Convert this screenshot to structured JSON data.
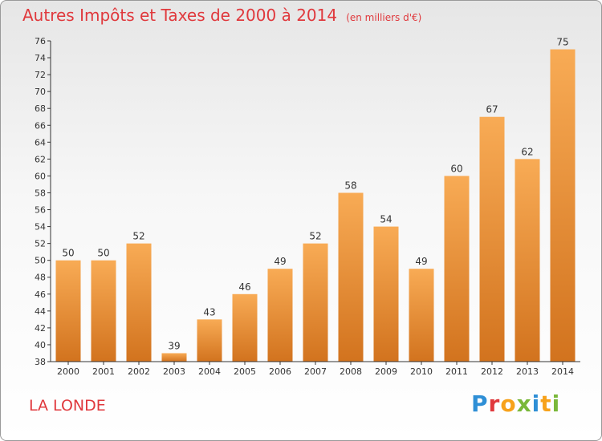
{
  "header": {
    "title": "Autres Impôts et Taxes de 2000 à 2014",
    "subtitle": "(en milliers d'€)"
  },
  "footer": {
    "commune": "LA LONDE",
    "logo": "Proxiti"
  },
  "colors": {
    "title": "#e0393d",
    "bar_light": "#f8ab55",
    "bar_dark": "#d2731e",
    "logo_letters": [
      "#2f8fd6",
      "#e0393d",
      "#f7a21b",
      "#7ab83a",
      "#2f8fd6",
      "#f7a21b",
      "#7ab83a"
    ]
  },
  "chart_data": {
    "type": "bar",
    "title": "Autres Impôts et Taxes de 2000 à 2014",
    "subtitle": "(en milliers d'€)",
    "xlabel": "",
    "ylabel": "",
    "categories": [
      "2000",
      "2001",
      "2002",
      "2003",
      "2004",
      "2005",
      "2006",
      "2007",
      "2008",
      "2009",
      "2010",
      "2011",
      "2012",
      "2013",
      "2014"
    ],
    "values": [
      50,
      50,
      52,
      39,
      43,
      46,
      49,
      52,
      58,
      54,
      49,
      60,
      67,
      62,
      75
    ],
    "ylim": [
      38,
      76
    ],
    "yticks": [
      38,
      40,
      42,
      44,
      46,
      48,
      50,
      52,
      54,
      56,
      58,
      60,
      62,
      64,
      66,
      68,
      70,
      72,
      74,
      76
    ],
    "grid": false,
    "data_labels": true
  }
}
